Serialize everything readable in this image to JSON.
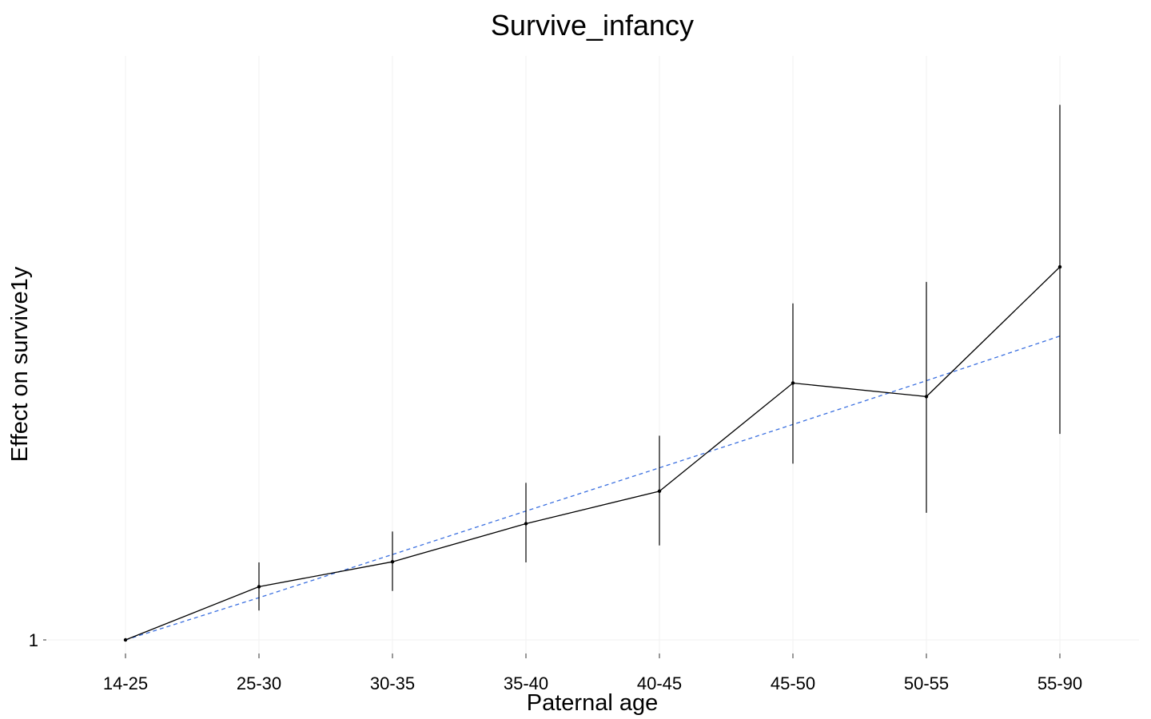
{
  "chart_data": {
    "type": "line",
    "title": "Survive_infancy",
    "xlabel": "Paternal age",
    "ylabel": "Effect on survive1y",
    "categories": [
      "14-25",
      "25-30",
      "30-35",
      "35-40",
      "40-45",
      "45-50",
      "50-55",
      "55-90"
    ],
    "y_ticks": [
      1
    ],
    "y_tick_labels": [
      "1"
    ],
    "y_scale": "log",
    "ylim": [
      0.999,
      1.0625
    ],
    "series": [
      {
        "values": [
          1.0,
          1.0087,
          1.0128,
          1.0191,
          1.0245,
          1.0427,
          1.0404,
          1.0626
        ],
        "ci_lower": [
          1.0,
          1.0048,
          1.008,
          1.0127,
          1.0155,
          1.0291,
          1.0209,
          1.0341
        ],
        "ci_upper": [
          1.0,
          1.0127,
          1.0178,
          1.0259,
          1.0338,
          1.0563,
          1.06,
          1.091
        ],
        "color": "#000000"
      }
    ],
    "trend": {
      "values": [
        1.0,
        1.0069,
        1.014,
        1.0212,
        1.0284,
        1.0357,
        1.0431,
        1.0507
      ],
      "style": "dashed",
      "color": "#3a6fe0"
    },
    "grid": {
      "vertical": true,
      "horizontal": true,
      "color": "#f2f2f2"
    },
    "legend": "none"
  }
}
